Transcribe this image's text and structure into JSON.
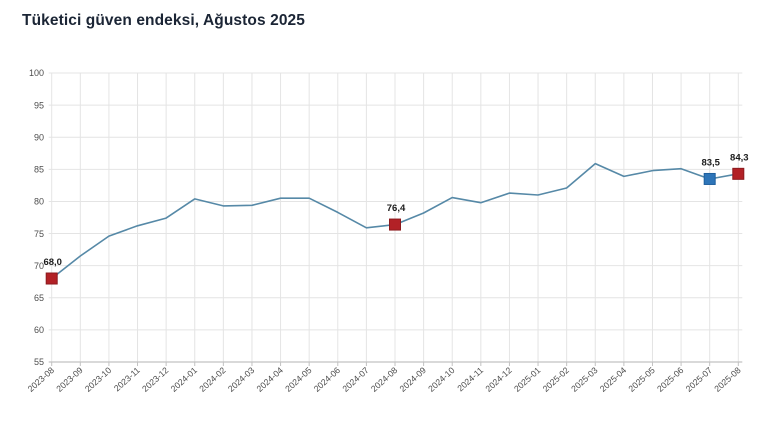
{
  "page": {
    "title": "Tüketici güven endeksi, Ağustos 2025"
  },
  "chart_data": {
    "type": "line",
    "title": "Tüketici güven endeksi, Ağustos 2025",
    "categories": [
      "2023-08",
      "2023-09",
      "2023-10",
      "2023-11",
      "2023-12",
      "2024-01",
      "2024-02",
      "2024-03",
      "2024-04",
      "2024-05",
      "2024-06",
      "2024-07",
      "2024-08",
      "2024-09",
      "2024-10",
      "2024-11",
      "2024-12",
      "2025-01",
      "2025-02",
      "2025-03",
      "2025-04",
      "2025-05",
      "2025-06",
      "2025-07",
      "2025-08"
    ],
    "values": [
      68.0,
      71.5,
      74.6,
      76.2,
      77.4,
      80.4,
      79.3,
      79.4,
      80.5,
      80.5,
      78.3,
      75.9,
      76.4,
      78.2,
      80.6,
      79.8,
      81.3,
      81.0,
      82.1,
      85.9,
      83.9,
      84.8,
      85.1,
      83.5,
      84.3
    ],
    "annotations": [
      {
        "index": 0,
        "category": "2023-08",
        "label": "68,0",
        "marker": "red"
      },
      {
        "index": 12,
        "category": "2024-08",
        "label": "76,4",
        "marker": "red"
      },
      {
        "index": 23,
        "category": "2025-07",
        "label": "83,5",
        "marker": "blue"
      },
      {
        "index": 24,
        "category": "2025-08",
        "label": "84,3",
        "marker": "red"
      }
    ],
    "ylim": [
      55,
      100
    ],
    "ytick_step": 5,
    "ytick_labels": [
      "55",
      "60",
      "65",
      "70",
      "75",
      "80",
      "85",
      "90",
      "95",
      "100"
    ],
    "grid": true,
    "legend": "none",
    "xlabel": "",
    "ylabel": "",
    "colors": {
      "line": "#5689a7",
      "marker_red": "#b22126",
      "marker_red_border": "#8c1a1e",
      "marker_blue": "#2e75b8",
      "marker_blue_border": "#1e5f9e",
      "grid": "#e4e4e4",
      "axis": "#c2c2c2",
      "tick_label": "#4d4d4d",
      "title": "#1b2535",
      "data_label": "#1b1b1b",
      "background": "#ffffff"
    }
  }
}
